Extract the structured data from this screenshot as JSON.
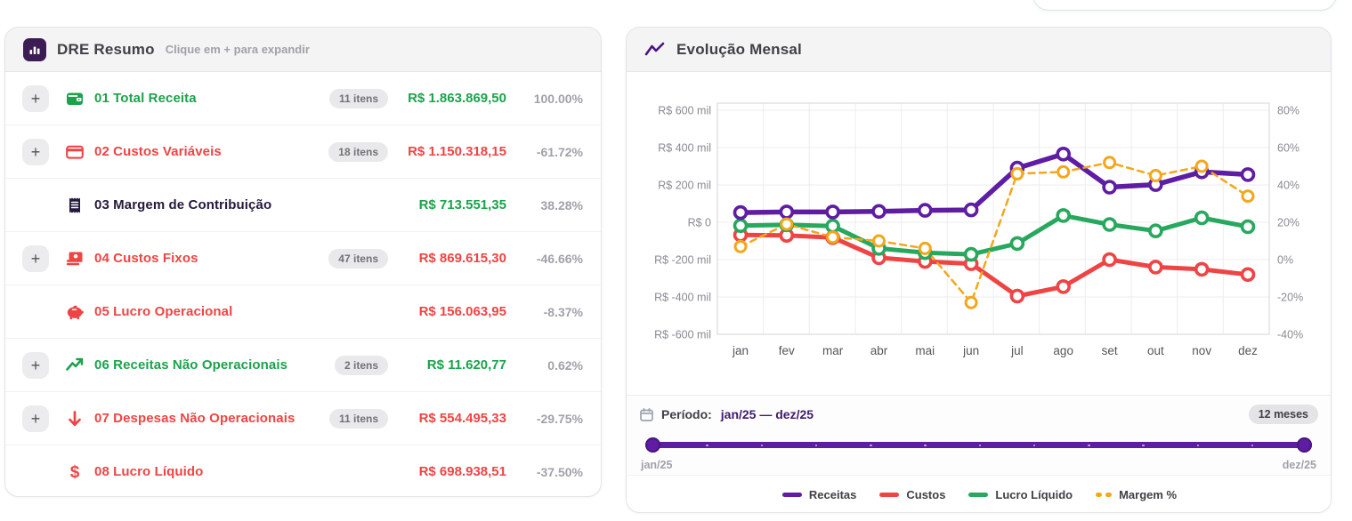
{
  "dre": {
    "icon": "bar-chart-icon",
    "title": "DRE Resumo",
    "subtitle": "Clique em + para expandir",
    "expand_symbol": "+",
    "rows": [
      {
        "label": "01 Total Receita",
        "icon": "wallet-icon",
        "items": "11 itens",
        "value": "R$ 1.863.869,50",
        "percent": "100.00%",
        "label_color": "green",
        "value_color": "green",
        "expandable": true
      },
      {
        "label": "02 Custos Variáveis",
        "icon": "credit-card-icon",
        "items": "18 itens",
        "value": "R$ 1.150.318,15",
        "percent": "-61.72%",
        "label_color": "red",
        "value_color": "red",
        "expandable": true
      },
      {
        "label": "03 Margem de Contribuição",
        "icon": "receipt-icon",
        "items": null,
        "value": "R$ 713.551,35",
        "percent": "38.28%",
        "label_color": "dark",
        "value_color": "green",
        "expandable": false
      },
      {
        "label": "04 Custos Fixos",
        "icon": "banknotes-icon",
        "items": "47 itens",
        "value": "R$ 869.615,30",
        "percent": "-46.66%",
        "label_color": "red",
        "value_color": "red",
        "expandable": true
      },
      {
        "label": "05 Lucro Operacional",
        "icon": "piggy-bank-icon",
        "items": null,
        "value": "R$ 156.063,95",
        "percent": "-8.37%",
        "label_color": "red",
        "value_color": "red",
        "expandable": false
      },
      {
        "label": "06 Receitas Não Operacionais",
        "icon": "trending-up-icon",
        "items": "2 itens",
        "value": "R$ 11.620,77",
        "percent": "0.62%",
        "label_color": "green",
        "value_color": "green",
        "expandable": true
      },
      {
        "label": "07 Despesas Não Operacionais",
        "icon": "arrow-down-icon",
        "items": "11 itens",
        "value": "R$ 554.495,33",
        "percent": "-29.75%",
        "label_color": "red",
        "value_color": "red",
        "expandable": true
      },
      {
        "label": "08 Lucro Líquido",
        "icon": "dollar-icon",
        "items": null,
        "value": "R$ 698.938,51",
        "percent": "-37.50%",
        "label_color": "red",
        "value_color": "red",
        "expandable": false
      }
    ]
  },
  "evolucao": {
    "icon": "trend-line-icon",
    "title": "Evolução Mensal",
    "period": {
      "icon": "calendar-icon",
      "label": "Período:",
      "range": "jan/25 — dez/25",
      "badge": "12 meses",
      "slider_start": "jan/25",
      "slider_end": "dez/25"
    }
  },
  "chart_data": {
    "type": "line",
    "title": "Evolução Mensal",
    "categories": [
      "jan",
      "fev",
      "mar",
      "abr",
      "mai",
      "jun",
      "jul",
      "ago",
      "set",
      "out",
      "nov",
      "dez"
    ],
    "series": [
      {
        "name": "Receitas",
        "axis": "left",
        "unit": "R$ mil",
        "color": "#5e1da2",
        "dashed": false,
        "values": [
          52,
          55,
          55,
          58,
          64,
          66,
          290,
          365,
          188,
          202,
          270,
          255
        ]
      },
      {
        "name": "Custos",
        "axis": "left",
        "unit": "R$ mil",
        "color": "#ef4444",
        "dashed": false,
        "values": [
          -68,
          -70,
          -82,
          -190,
          -210,
          -222,
          -395,
          -345,
          -200,
          -240,
          -252,
          -280
        ]
      },
      {
        "name": "Lucro Líquido",
        "axis": "left",
        "unit": "R$ mil",
        "color": "#27a85e",
        "dashed": false,
        "values": [
          -18,
          -14,
          -20,
          -140,
          -163,
          -172,
          -114,
          36,
          -12,
          -46,
          24,
          -24
        ]
      },
      {
        "name": "Margem %",
        "axis": "right",
        "unit": "%",
        "color": "#f3a71b",
        "dashed": true,
        "values": [
          7,
          19,
          12,
          10,
          6,
          -23,
          46,
          47,
          52,
          45,
          50,
          34
        ]
      }
    ],
    "y_left": {
      "ticks": [
        "R$ 600 mil",
        "R$ 400 mil",
        "R$ 200 mil",
        "R$ 0",
        "R$ -200 mil",
        "R$ -400 mil",
        "R$ -600 mil"
      ],
      "min": -600,
      "max": 600
    },
    "y_right": {
      "ticks": [
        "80%",
        "60%",
        "40%",
        "20%",
        "0%",
        "-20%",
        "-40%"
      ],
      "min": -40,
      "max": 80
    },
    "grid": true,
    "legend_position": "bottom",
    "draw_order": [
      1,
      2,
      0,
      3
    ]
  },
  "colors": {
    "green": "#1da24c",
    "red": "#ef4444",
    "purple": "#5e1da2",
    "amber": "#f3a71b",
    "grid": "#ececef",
    "plot_border": "#dcdce0"
  }
}
